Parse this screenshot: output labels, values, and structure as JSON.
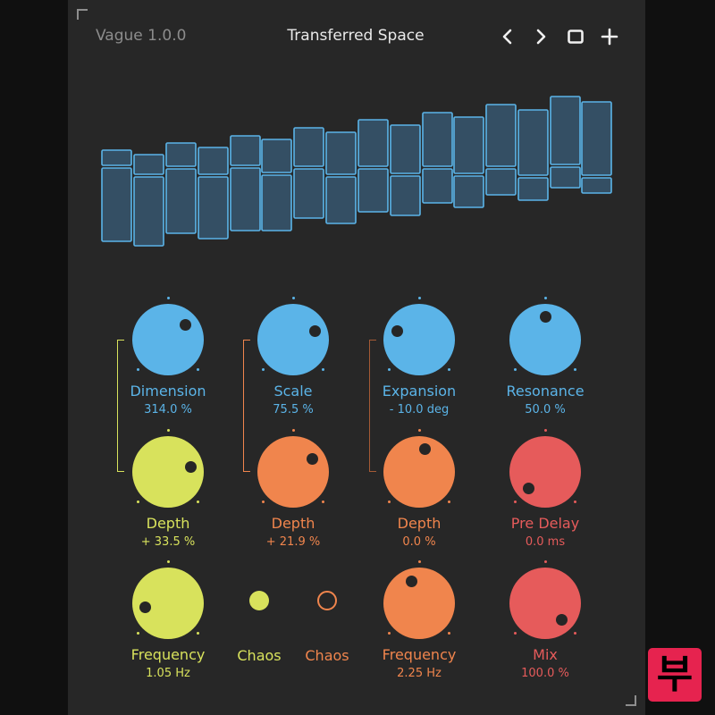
{
  "header": {
    "version": "Vague 1.0.0",
    "preset_name": "Transferred Space",
    "buttons": [
      {
        "name": "previous-preset-button",
        "icon": "chevron-left-icon"
      },
      {
        "name": "next-preset-button",
        "icon": "chevron-right-icon"
      },
      {
        "name": "window-button",
        "icon": "square-icon"
      },
      {
        "name": "add-button",
        "icon": "plus-icon"
      }
    ]
  },
  "colors": {
    "blue": "#5bb4e8",
    "yellow": "#d8e25c",
    "orange": "#f0854d",
    "red": "#e65b5b",
    "bar_fill": "#344f64",
    "panel": "#272727"
  },
  "knobs": {
    "dimension": {
      "label": "Dimension",
      "value": "314.0 %"
    },
    "scale": {
      "label": "Scale",
      "value": "75.5 %"
    },
    "expansion": {
      "label": "Expansion",
      "value": "- 10.0 deg"
    },
    "resonance": {
      "label": "Resonance",
      "value": "50.0 %"
    },
    "depth_yellow": {
      "label": "Depth",
      "value": "+ 33.5 %"
    },
    "depth_orange": {
      "label": "Depth",
      "value": "+ 21.9 %"
    },
    "depth_orange_dark": {
      "label": "Depth",
      "value": "0.0 %"
    },
    "pre_delay": {
      "label": "Pre Delay",
      "value": "0.0 ms"
    },
    "frequency_yellow": {
      "label": "Frequency",
      "value": "1.05 Hz"
    },
    "frequency_orange": {
      "label": "Frequency",
      "value": "2.25 Hz"
    },
    "mix": {
      "label": "Mix",
      "value": "100.0 %"
    }
  },
  "chaos": [
    {
      "label": "Chaos",
      "state": "on"
    },
    {
      "label": "Chaos",
      "state": "off"
    }
  ],
  "logo": {
    "glyph": "부"
  }
}
